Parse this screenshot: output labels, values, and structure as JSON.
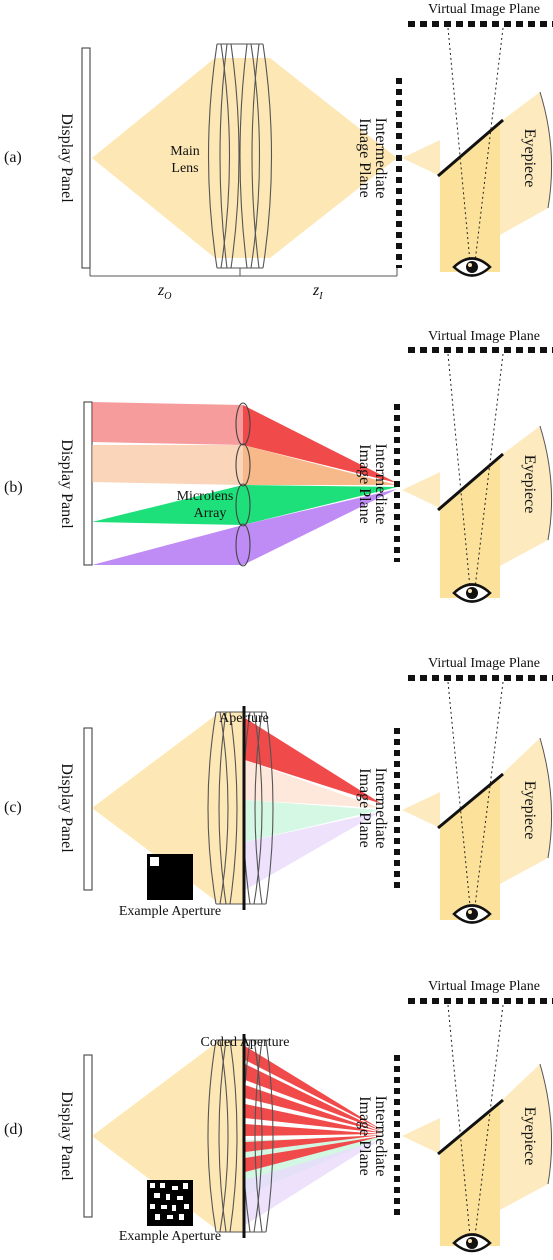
{
  "colors": {
    "light_cone": "#fde7b4",
    "eye_beam": "#fbd77a",
    "red": "#f04a4a",
    "orange": "#f8b98a",
    "green": "#1ee07a",
    "purple": "#bf8bf5",
    "dark": "#111111"
  },
  "labels": {
    "virtual_image_plane": "Virtual Image Plane",
    "intermediate_image_plane_line1": "Intermediate",
    "intermediate_image_plane_line2": "Image Plane",
    "eyepiece": "Eyepiece",
    "display_panel": "Display Panel"
  },
  "panels": [
    {
      "id": "a",
      "tag": "(a)",
      "lens_label_line1": "Main",
      "lens_label_line2": "Lens",
      "dimension_labels": [
        "z",
        "z"
      ],
      "dimension_subscripts": [
        "O",
        "I"
      ]
    },
    {
      "id": "b",
      "tag": "(b)",
      "lens_label_line1": "Microlens",
      "lens_label_line2": "Array"
    },
    {
      "id": "c",
      "tag": "(c)",
      "aperture_label": "Aperture",
      "example_label": "Example Aperture"
    },
    {
      "id": "d",
      "tag": "(d)",
      "aperture_label": "Coded Aperture",
      "example_label": "Example Aperture"
    }
  ]
}
